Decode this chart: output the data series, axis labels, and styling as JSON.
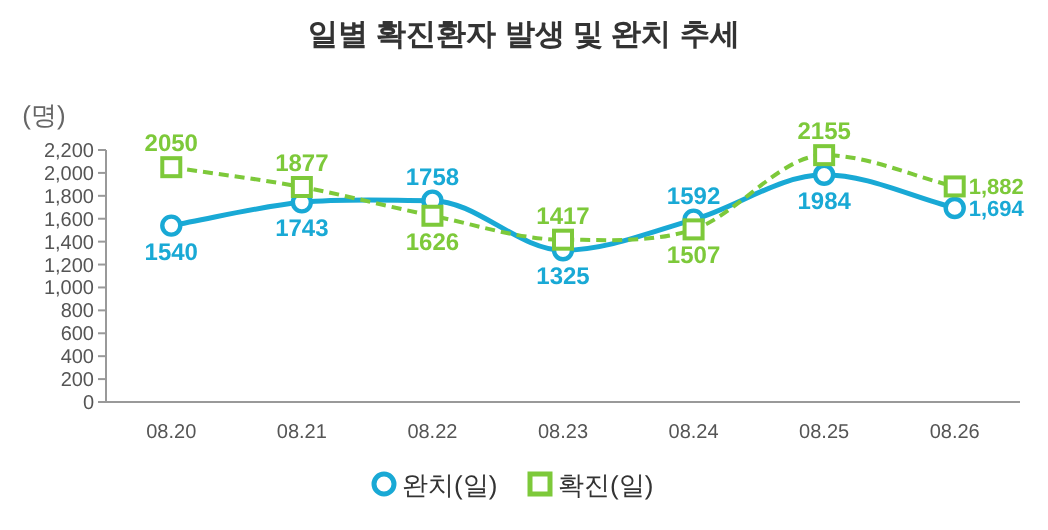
{
  "chart_data": {
    "type": "line",
    "title": "일별 확진환자 발생 및 완치 추세",
    "ylabel": "(명)",
    "categories": [
      "08.20",
      "08.21",
      "08.22",
      "08.23",
      "08.24",
      "08.25",
      "08.26"
    ],
    "series": [
      {
        "name": "완치(일)",
        "color": "#19a9d5",
        "values": [
          1540,
          1743,
          1758,
          1325,
          1592,
          1984,
          1694
        ],
        "marker": "circle",
        "line_style": "solid",
        "value_labels": [
          "1540",
          "1743",
          "1758",
          "1325",
          "1592",
          "1984",
          "1,694"
        ]
      },
      {
        "name": "확진(일)",
        "color": "#7dc93a",
        "values": [
          2050,
          1877,
          1626,
          1417,
          1507,
          2155,
          1882
        ],
        "marker": "square",
        "line_style": "dashed",
        "value_labels": [
          "2050",
          "1877",
          "1626",
          "1417",
          "1507",
          "2155",
          "1,882"
        ]
      }
    ],
    "ylim": [
      0,
      2200
    ],
    "yticks": [
      {
        "value": 0,
        "label": "0"
      },
      {
        "value": 200,
        "label": "200"
      },
      {
        "value": 400,
        "label": "400"
      },
      {
        "value": 600,
        "label": "600"
      },
      {
        "value": 800,
        "label": "800"
      },
      {
        "value": 1000,
        "label": "1,000"
      },
      {
        "value": 1200,
        "label": "1,200"
      },
      {
        "value": 1400,
        "label": "1,400"
      },
      {
        "value": 1600,
        "label": "1,600"
      },
      {
        "value": 1800,
        "label": "1,800"
      },
      {
        "value": 2000,
        "label": "2,000"
      },
      {
        "value": 2200,
        "label": "2,200"
      }
    ],
    "grid": false,
    "legend": "bottom"
  }
}
